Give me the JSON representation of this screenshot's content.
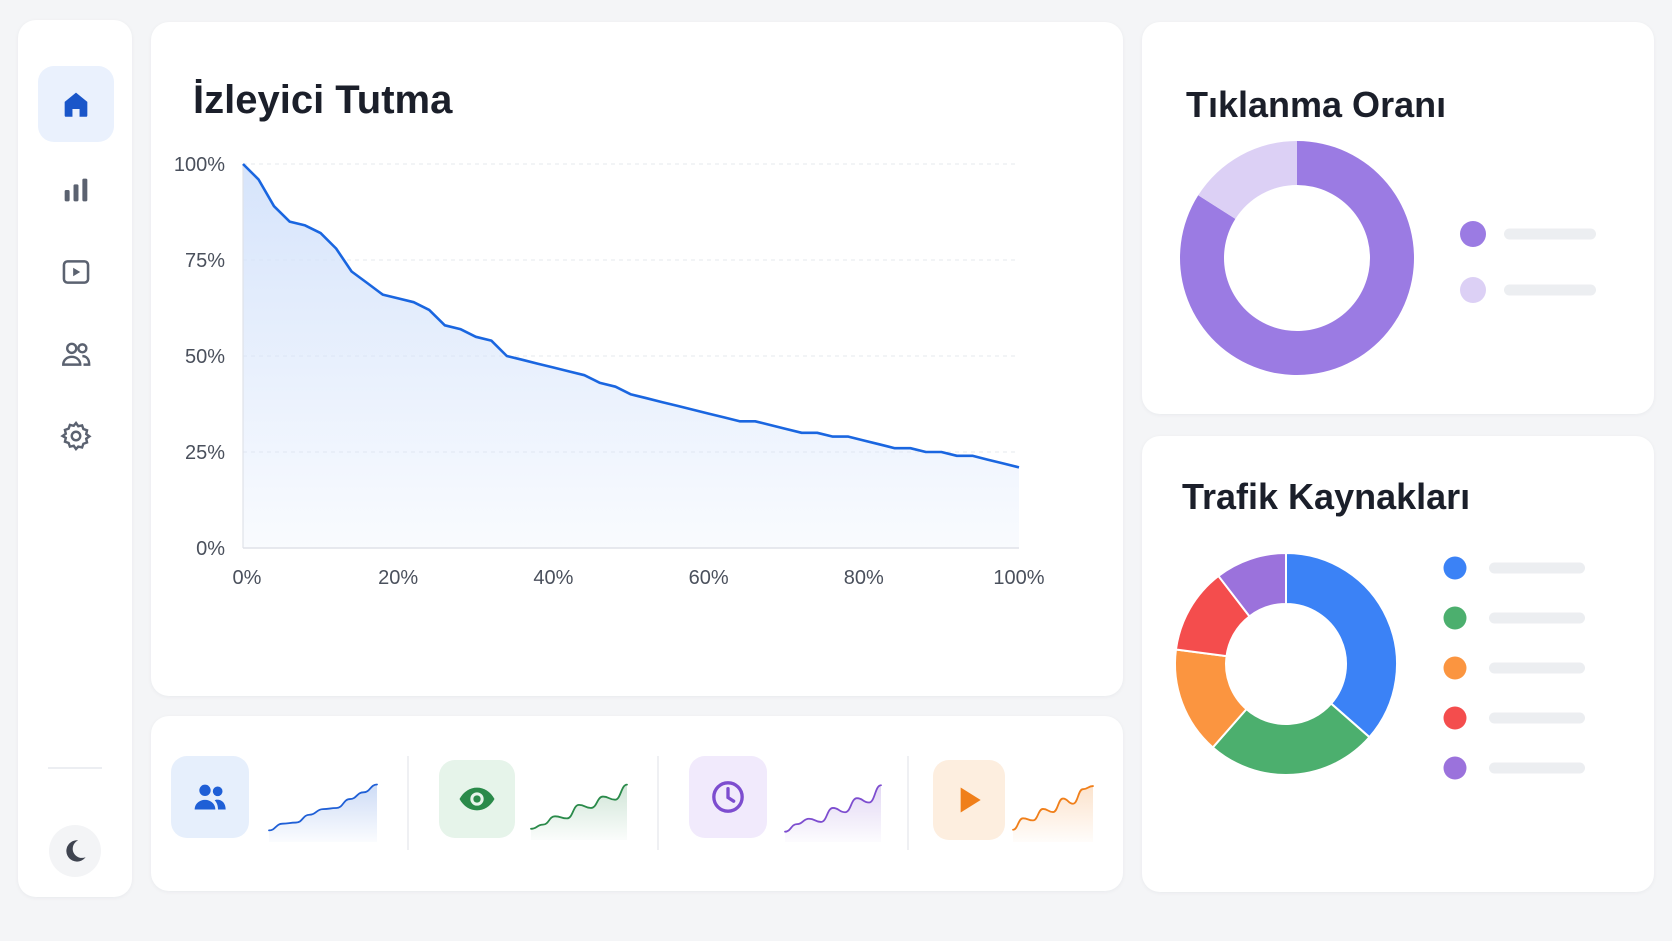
{
  "sidebar": {
    "items": [
      {
        "icon": "home-icon",
        "active": true
      },
      {
        "icon": "bar-chart-icon",
        "active": false
      },
      {
        "icon": "video-icon",
        "active": false
      },
      {
        "icon": "users-icon",
        "active": false
      },
      {
        "icon": "gear-icon",
        "active": false
      }
    ],
    "theme_toggle_icon": "moon-icon"
  },
  "colors": {
    "accent": "#1a66e0",
    "retention_fill": "#d6e4fb",
    "ctr_primary": "#9b7be3",
    "ctr_secondary": "#dcd0f5",
    "traffic": [
      "#3b82f6",
      "#4caf6e",
      "#fb9540",
      "#f44d4d",
      "#9b72dc"
    ]
  },
  "retention": {
    "title": "İzleyici Tutma"
  },
  "ctr": {
    "title": "Tıklanma Oranı",
    "legend_colors": [
      "#9b7be3",
      "#dcd0f5"
    ]
  },
  "traffic": {
    "title": "Trafik Kaynakları",
    "legend_colors": [
      "#3b82f6",
      "#4caf6e",
      "#fb9540",
      "#f44d4d",
      "#9b72dc"
    ]
  },
  "stats": [
    {
      "icon": "users-icon",
      "color": "#1f5fd6",
      "bg": "#e6effc",
      "spark": [
        0.1,
        0.22,
        0.24,
        0.38,
        0.48,
        0.5,
        0.66,
        0.78,
        0.92
      ]
    },
    {
      "icon": "eye-icon",
      "color": "#2a8a4a",
      "bg": "#e6f4ea",
      "spark": [
        0.1,
        0.18,
        0.34,
        0.3,
        0.56,
        0.5,
        0.72,
        0.66,
        0.95
      ]
    },
    {
      "icon": "clock-icon",
      "color": "#7d4dcf",
      "bg": "#f1eafc",
      "spark": [
        0.08,
        0.22,
        0.32,
        0.26,
        0.52,
        0.44,
        0.7,
        0.62,
        0.94
      ]
    },
    {
      "icon": "play-icon",
      "color": "#f07f1a",
      "bg": "#fdeedf",
      "spark": [
        0.12,
        0.34,
        0.3,
        0.52,
        0.46,
        0.72,
        0.62,
        0.9,
        0.96
      ]
    }
  ],
  "chart_data": [
    {
      "type": "area",
      "title": "İzleyici Tutma",
      "xlabel": "",
      "ylabel": "",
      "x_ticks": [
        "0%",
        "20%",
        "40%",
        "60%",
        "80%",
        "100%"
      ],
      "y_ticks": [
        "100%",
        "75%",
        "50%",
        "25%",
        "0%"
      ],
      "xlim": [
        0,
        100
      ],
      "ylim": [
        0,
        100
      ],
      "grid": true,
      "series": [
        {
          "x": [
            0,
            2,
            4,
            6,
            8,
            10,
            12,
            14,
            16,
            18,
            20,
            22,
            24,
            26,
            28,
            30,
            32,
            34,
            36,
            38,
            40,
            42,
            44,
            46,
            48,
            50,
            52,
            54,
            56,
            58,
            60,
            62,
            64,
            66,
            68,
            70,
            72,
            74,
            76,
            78,
            80,
            82,
            84,
            86,
            88,
            90,
            92,
            94,
            96,
            98,
            100
          ],
          "y": [
            100,
            96,
            89,
            85,
            84,
            82,
            78,
            72,
            69,
            66,
            65,
            64,
            62,
            58,
            57,
            55,
            54,
            50,
            49,
            48,
            47,
            46,
            45,
            43,
            42,
            40,
            39,
            38,
            37,
            36,
            35,
            34,
            33,
            33,
            32,
            31,
            30,
            30,
            29,
            29,
            28,
            27,
            26,
            26,
            25,
            25,
            24,
            24,
            23,
            22,
            21
          ]
        }
      ]
    },
    {
      "type": "pie",
      "title": "Tıklanma Oranı",
      "donut": true,
      "values": [
        84,
        16
      ],
      "colors": [
        "#9b7be3",
        "#dcd0f5"
      ]
    },
    {
      "type": "pie",
      "title": "Trafik Kaynakları",
      "donut": true,
      "values": [
        35,
        24,
        15,
        12,
        10
      ],
      "colors": [
        "#3b82f6",
        "#4caf6e",
        "#fb9540",
        "#f44d4d",
        "#9b72dc"
      ]
    }
  ]
}
